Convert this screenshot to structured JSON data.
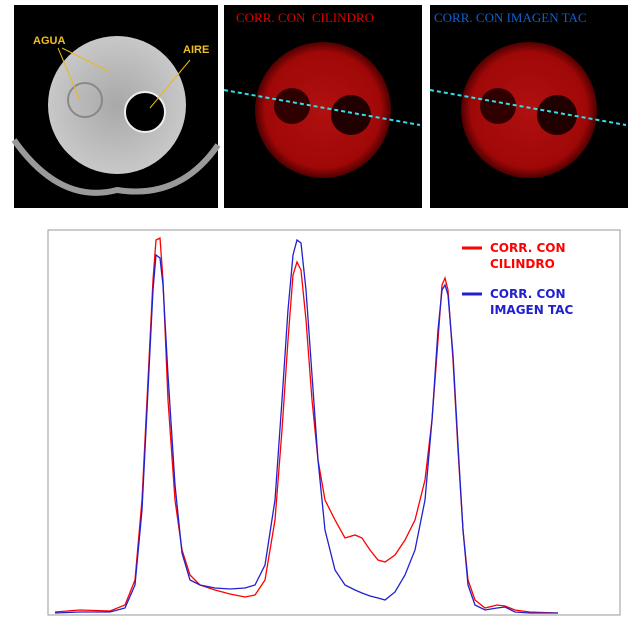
{
  "images": {
    "labels": [
      "AGUA",
      "AIRE"
    ],
    "titles": [
      "CORR. CON  CILINDRO",
      "CORR. CON IMAGEN TAC"
    ]
  },
  "chart_data": {
    "type": "line",
    "x": [
      0,
      25,
      55,
      70,
      80,
      87,
      93,
      98,
      101,
      105,
      108,
      113,
      120,
      127,
      135,
      145,
      160,
      175,
      190,
      200,
      210,
      220,
      227,
      233,
      238,
      242,
      246,
      251,
      257,
      263,
      270,
      280,
      290,
      300,
      307,
      315,
      323,
      330,
      340,
      350,
      360,
      370,
      377,
      383,
      387,
      390,
      393,
      398,
      403,
      408,
      413,
      420,
      430,
      442,
      450,
      460,
      475,
      503
    ],
    "xlim": [
      -7,
      565
    ],
    "ylim": [
      0,
      385
    ],
    "series": [
      {
        "name": "CORR. CON CILINDRO",
        "color": "#ff0000",
        "values": [
          3,
          5,
          4,
          10,
          35,
          115,
          235,
          335,
          375,
          377,
          335,
          215,
          115,
          65,
          40,
          30,
          25,
          21,
          18,
          20,
          35,
          95,
          185,
          275,
          340,
          353,
          345,
          295,
          215,
          155,
          115,
          95,
          77,
          80,
          77,
          65,
          55,
          53,
          60,
          75,
          95,
          135,
          195,
          275,
          330,
          337,
          325,
          255,
          165,
          85,
          35,
          15,
          7,
          10,
          9,
          5,
          3,
          2
        ]
      },
      {
        "name": "CORR. CON IMAGEN TAC",
        "color": "#2020d0",
        "values": [
          2,
          3,
          3,
          7,
          30,
          105,
          225,
          325,
          360,
          357,
          330,
          240,
          130,
          62,
          35,
          30,
          27,
          26,
          27,
          30,
          50,
          115,
          215,
          305,
          360,
          375,
          372,
          325,
          240,
          155,
          85,
          45,
          30,
          25,
          22,
          19,
          17,
          15,
          23,
          40,
          65,
          115,
          195,
          285,
          325,
          330,
          320,
          260,
          170,
          85,
          30,
          10,
          5,
          7,
          8,
          3,
          2,
          2
        ]
      }
    ]
  }
}
